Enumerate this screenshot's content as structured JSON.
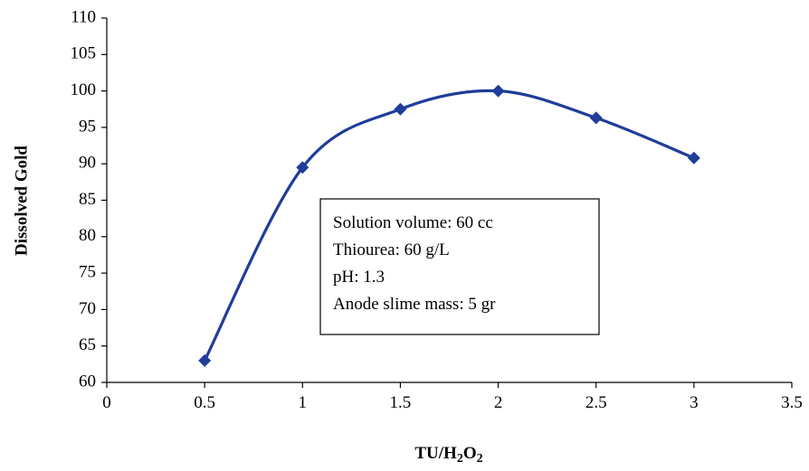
{
  "chart_data": {
    "type": "line",
    "title": "",
    "xlabel": "TU/H2O2",
    "ylabel": "Dissolved Gold",
    "xlim": [
      0,
      3.5
    ],
    "ylim": [
      60,
      110
    ],
    "x_ticks": [
      "0",
      "0.5",
      "1",
      "1.5",
      "2",
      "2.5",
      "3",
      "3.5"
    ],
    "y_ticks": [
      "60",
      "65",
      "70",
      "75",
      "80",
      "85",
      "90",
      "95",
      "100",
      "105",
      "110"
    ],
    "grid": false,
    "legend": "none",
    "series": [
      {
        "color": "#1f3d99",
        "marker": "diamond",
        "smooth": true,
        "x": [
          0.5,
          1,
          1.5,
          2,
          2.5,
          3
        ],
        "y": [
          63,
          89.5,
          97.5,
          100,
          96.3,
          90.8
        ]
      }
    ],
    "annotation": {
      "lines": [
        "Solution volume: 60 cc",
        "Thiourea: 60 g/L",
        "pH: 1.3",
        "Anode slime mass: 5 gr"
      ]
    }
  }
}
